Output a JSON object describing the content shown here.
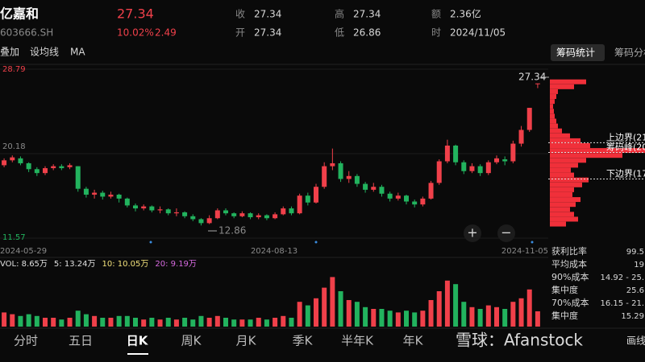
{
  "header": {
    "name": "亿嘉和",
    "price": "27.34",
    "code": "603666.SH",
    "change_pct": "10.02%",
    "change": "2.49",
    "quote": [
      {
        "label": "收",
        "value": "27.34"
      },
      {
        "label": "高",
        "value": "27.34"
      },
      {
        "label": "额",
        "value": "2.36亿"
      },
      {
        "label": "开",
        "value": "27.34"
      },
      {
        "label": "低",
        "value": "26.86"
      },
      {
        "label": "时",
        "value": "2024/11/05"
      }
    ]
  },
  "toolbar": {
    "items": [
      "叠加",
      "设均线",
      "MA"
    ],
    "tabs": [
      "筹码统计",
      "筹码分析"
    ]
  },
  "chart_data": {
    "type": "candlestick",
    "ylim": [
      11.57,
      28.79
    ],
    "yticks": [
      11.57,
      20.18,
      28.79
    ],
    "grid": true,
    "up_color": "#f0404a",
    "down_color": "#22b35e",
    "dates": [
      "2024-05-29",
      "2024-08-13",
      "2024-11-05"
    ],
    "low_label": "12.86",
    "high_label": "27.34",
    "candles": [
      {
        "open": 19.0,
        "close": 19.5,
        "high": 19.7,
        "low": 18.8
      },
      {
        "open": 19.5,
        "close": 19.8,
        "high": 20.0,
        "low": 19.3
      },
      {
        "open": 19.7,
        "close": 19.2,
        "high": 19.9,
        "low": 19.0
      },
      {
        "open": 19.2,
        "close": 18.6,
        "high": 19.3,
        "low": 18.3
      },
      {
        "open": 18.6,
        "close": 18.2,
        "high": 18.8,
        "low": 17.9
      },
      {
        "open": 18.2,
        "close": 18.7,
        "high": 18.9,
        "low": 18.0
      },
      {
        "open": 18.7,
        "close": 18.9,
        "high": 19.1,
        "low": 18.5
      },
      {
        "open": 18.9,
        "close": 18.7,
        "high": 19.1,
        "low": 18.5
      },
      {
        "open": 18.8,
        "close": 19.0,
        "high": 19.2,
        "low": 18.6
      },
      {
        "open": 18.9,
        "close": 16.6,
        "high": 18.9,
        "low": 16.3
      },
      {
        "open": 16.6,
        "close": 16.0,
        "high": 16.8,
        "low": 15.7
      },
      {
        "open": 16.0,
        "close": 16.2,
        "high": 16.5,
        "low": 15.6
      },
      {
        "open": 16.2,
        "close": 15.8,
        "high": 16.4,
        "low": 15.5
      },
      {
        "open": 15.8,
        "close": 16.0,
        "high": 16.3,
        "low": 15.6
      },
      {
        "open": 16.0,
        "close": 15.6,
        "high": 16.1,
        "low": 15.2
      },
      {
        "open": 15.6,
        "close": 14.9,
        "high": 15.7,
        "low": 14.7
      },
      {
        "open": 14.9,
        "close": 14.6,
        "high": 15.1,
        "low": 14.3
      },
      {
        "open": 14.6,
        "close": 14.8,
        "high": 15.0,
        "low": 14.4
      },
      {
        "open": 14.8,
        "close": 14.4,
        "high": 14.9,
        "low": 14.2
      },
      {
        "open": 14.4,
        "close": 14.5,
        "high": 14.8,
        "low": 14.1
      },
      {
        "open": 14.5,
        "close": 14.1,
        "high": 14.6,
        "low": 13.9
      },
      {
        "open": 14.1,
        "close": 14.2,
        "high": 14.6,
        "low": 13.8
      },
      {
        "open": 14.2,
        "close": 13.8,
        "high": 14.3,
        "low": 13.6
      },
      {
        "open": 13.8,
        "close": 13.5,
        "high": 14.0,
        "low": 13.3
      },
      {
        "open": 13.5,
        "close": 13.1,
        "high": 13.6,
        "low": 12.86
      },
      {
        "open": 13.1,
        "close": 13.6,
        "high": 13.9,
        "low": 13.0
      },
      {
        "open": 13.6,
        "close": 14.4,
        "high": 14.6,
        "low": 13.5
      },
      {
        "open": 14.4,
        "close": 14.1,
        "high": 14.6,
        "low": 13.9
      },
      {
        "open": 14.1,
        "close": 13.8,
        "high": 14.2,
        "low": 13.6
      },
      {
        "open": 13.8,
        "close": 14.1,
        "high": 14.3,
        "low": 13.7
      },
      {
        "open": 14.1,
        "close": 13.7,
        "high": 14.2,
        "low": 13.5
      },
      {
        "open": 13.7,
        "close": 13.9,
        "high": 14.1,
        "low": 13.5
      },
      {
        "open": 13.9,
        "close": 13.6,
        "high": 14.0,
        "low": 13.4
      },
      {
        "open": 13.6,
        "close": 14.0,
        "high": 14.2,
        "low": 13.5
      },
      {
        "open": 14.0,
        "close": 14.6,
        "high": 14.8,
        "low": 13.9
      },
      {
        "open": 14.6,
        "close": 14.1,
        "high": 14.8,
        "low": 13.9
      },
      {
        "open": 14.1,
        "close": 15.9,
        "high": 16.1,
        "low": 14.0
      },
      {
        "open": 15.9,
        "close": 15.2,
        "high": 16.2,
        "low": 14.9
      },
      {
        "open": 15.2,
        "close": 16.8,
        "high": 17.1,
        "low": 15.1
      },
      {
        "open": 16.8,
        "close": 18.9,
        "high": 19.3,
        "low": 16.6
      },
      {
        "open": 18.9,
        "close": 19.2,
        "high": 20.7,
        "low": 18.5
      },
      {
        "open": 19.2,
        "close": 17.6,
        "high": 19.4,
        "low": 17.3
      },
      {
        "open": 17.6,
        "close": 17.9,
        "high": 18.4,
        "low": 17.2
      },
      {
        "open": 17.9,
        "close": 17.1,
        "high": 18.1,
        "low": 16.8
      },
      {
        "open": 17.1,
        "close": 16.5,
        "high": 17.3,
        "low": 16.2
      },
      {
        "open": 16.5,
        "close": 16.8,
        "high": 17.2,
        "low": 16.3
      },
      {
        "open": 16.8,
        "close": 16.1,
        "high": 17.0,
        "low": 15.8
      },
      {
        "open": 16.1,
        "close": 15.6,
        "high": 16.3,
        "low": 15.3
      },
      {
        "open": 15.6,
        "close": 15.9,
        "high": 16.2,
        "low": 15.4
      },
      {
        "open": 15.9,
        "close": 15.3,
        "high": 16.0,
        "low": 15.0
      },
      {
        "open": 15.3,
        "close": 15.0,
        "high": 15.5,
        "low": 14.7
      },
      {
        "open": 15.0,
        "close": 15.6,
        "high": 15.8,
        "low": 14.8
      },
      {
        "open": 15.6,
        "close": 17.2,
        "high": 17.4,
        "low": 15.5
      },
      {
        "open": 17.2,
        "close": 19.4,
        "high": 19.6,
        "low": 17.0
      },
      {
        "open": 19.4,
        "close": 21.0,
        "high": 21.6,
        "low": 19.2
      },
      {
        "open": 21.0,
        "close": 19.3,
        "high": 21.1,
        "low": 19.0
      },
      {
        "open": 19.3,
        "close": 18.4,
        "high": 19.5,
        "low": 18.1
      },
      {
        "open": 18.4,
        "close": 18.9,
        "high": 19.2,
        "low": 18.2
      },
      {
        "open": 18.9,
        "close": 18.2,
        "high": 19.1,
        "low": 17.9
      },
      {
        "open": 18.2,
        "close": 19.3,
        "high": 19.5,
        "low": 18.0
      },
      {
        "open": 19.3,
        "close": 19.7,
        "high": 20.0,
        "low": 19.1
      },
      {
        "open": 19.6,
        "close": 19.4,
        "high": 19.9,
        "low": 19.0
      },
      {
        "open": 19.4,
        "close": 21.2,
        "high": 21.5,
        "low": 19.2
      },
      {
        "open": 21.2,
        "close": 22.6,
        "high": 23.0,
        "low": 20.9
      },
      {
        "open": 22.6,
        "close": 24.85,
        "high": 24.85,
        "low": 22.4
      },
      {
        "open": 27.34,
        "close": 27.34,
        "high": 27.34,
        "low": 26.86
      }
    ],
    "volume": {
      "ylim": [
        0,
        30
      ],
      "legend": [
        "VOL: 8.65万",
        "5: 13.24万",
        "10: 10.05万",
        "20: 9.19万"
      ],
      "legend_colors": [
        "#e0e0e0",
        "#e0e0e0",
        "#f1e07a",
        "#d66ae0"
      ],
      "values": [
        8,
        7,
        6,
        7,
        6,
        5,
        5,
        4,
        5,
        9,
        7,
        6,
        5,
        5,
        6,
        6,
        5,
        4,
        5,
        4,
        5,
        4,
        5,
        4,
        6,
        5,
        6,
        5,
        4,
        4,
        4,
        5,
        4,
        5,
        6,
        5,
        14,
        12,
        16,
        22,
        28,
        20,
        15,
        14,
        11,
        10,
        10,
        9,
        8,
        9,
        8,
        9,
        15,
        20,
        26,
        24,
        14,
        11,
        10,
        12,
        11,
        10,
        14,
        16,
        21,
        8.65
      ]
    },
    "chips": {
      "color": "#f0303a",
      "prices": [
        13.0,
        13.5,
        14.0,
        14.5,
        15.0,
        15.5,
        16.0,
        16.5,
        17.0,
        17.5,
        18.0,
        18.5,
        19.0,
        19.5,
        20.0,
        20.5,
        21.0,
        21.5,
        22.0,
        22.5,
        23.0,
        23.5,
        24.0,
        24.5,
        25.0,
        25.5,
        26.0,
        26.5,
        27.0,
        27.5
      ],
      "values": [
        20,
        35,
        30,
        25,
        32,
        38,
        28,
        30,
        40,
        48,
        30,
        26,
        35,
        45,
        90,
        118,
        50,
        38,
        25,
        15,
        10,
        8,
        6,
        5,
        4,
        6,
        8,
        10,
        30,
        45
      ],
      "levels": [
        {
          "label": "上边界(21",
          "price": 21.3
        },
        {
          "label": "筹码峰(20",
          "price": 20.3
        },
        {
          "label": "下边界(17",
          "price": 17.6
        }
      ]
    }
  },
  "panel": {
    "rows": [
      {
        "label": "获利比率",
        "value": "99.5"
      },
      {
        "label": "平均成本",
        "value": "19"
      },
      {
        "label": "90%成本",
        "value": "14.92 - 25."
      },
      {
        "label": "集中度",
        "value": "25.6"
      },
      {
        "label": "70%成本",
        "value": "16.15 - 21."
      },
      {
        "label": "集中度",
        "value": "15.29"
      }
    ]
  },
  "tabs": {
    "items": [
      "分时",
      "五日",
      "日K",
      "周K",
      "月K",
      "季K",
      "半年K",
      "年K"
    ],
    "watermark": "雪球：Afanstock",
    "draw": "画线"
  }
}
